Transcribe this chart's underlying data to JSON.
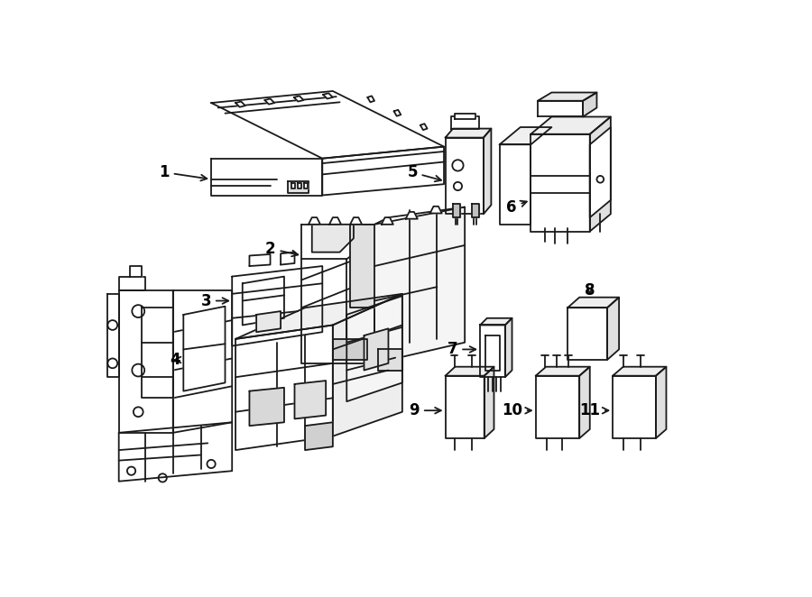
{
  "background_color": "#ffffff",
  "line_color": "#1a1a1a",
  "fig_width": 9.0,
  "fig_height": 6.62,
  "dpi": 100,
  "label_fontsize": 12,
  "lw": 1.3
}
